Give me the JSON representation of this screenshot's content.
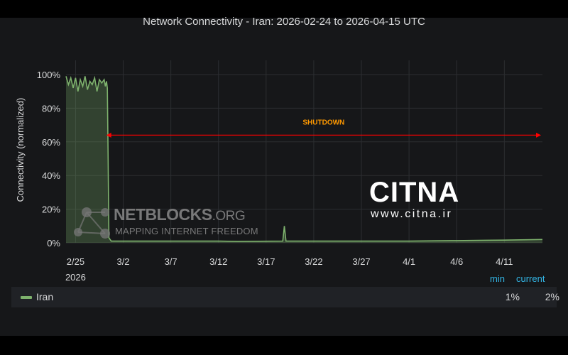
{
  "chart_data": {
    "type": "area",
    "title": "Network Connectivity - Iran: 2026-02-24 to 2026-04-15 UTC",
    "ylabel": "Connectivity (normalized)",
    "xlabel": "",
    "ylim": [
      0,
      100
    ],
    "xlim": [
      "2026-02-24",
      "2026-04-15"
    ],
    "y_ticks": [
      "0%",
      "20%",
      "40%",
      "60%",
      "80%",
      "100%"
    ],
    "x_ticks": [
      {
        "date": "2026-02-25",
        "label": "2/25",
        "sublabel": "2026"
      },
      {
        "date": "2026-03-02",
        "label": "3/2"
      },
      {
        "date": "2026-03-07",
        "label": "3/7"
      },
      {
        "date": "2026-03-12",
        "label": "3/12"
      },
      {
        "date": "2026-03-17",
        "label": "3/17"
      },
      {
        "date": "2026-03-22",
        "label": "3/22"
      },
      {
        "date": "2026-03-27",
        "label": "3/27"
      },
      {
        "date": "2026-04-01",
        "label": "4/1"
      },
      {
        "date": "2026-04-06",
        "label": "4/6"
      },
      {
        "date": "2026-04-11",
        "label": "4/11"
      }
    ],
    "grid": true,
    "series": [
      {
        "name": "Iran",
        "color": "#7eb26d",
        "points": [
          [
            "2026-02-24T00:00",
            99
          ],
          [
            "2026-02-24T06:00",
            94
          ],
          [
            "2026-02-24T12:00",
            98
          ],
          [
            "2026-02-24T18:00",
            92
          ],
          [
            "2026-02-25T00:00",
            98
          ],
          [
            "2026-02-25T06:00",
            90
          ],
          [
            "2026-02-25T12:00",
            97
          ],
          [
            "2026-02-25T18:00",
            93
          ],
          [
            "2026-02-26T00:00",
            99
          ],
          [
            "2026-02-26T06:00",
            91
          ],
          [
            "2026-02-26T12:00",
            96
          ],
          [
            "2026-02-26T18:00",
            94
          ],
          [
            "2026-02-27T00:00",
            98
          ],
          [
            "2026-02-27T06:00",
            90
          ],
          [
            "2026-02-27T12:00",
            97
          ],
          [
            "2026-02-27T18:00",
            95
          ],
          [
            "2026-02-28T00:00",
            97
          ],
          [
            "2026-02-28T03:00",
            93
          ],
          [
            "2026-02-28T06:00",
            96
          ],
          [
            "2026-02-28T08:00",
            92
          ],
          [
            "2026-02-28T10:00",
            50
          ],
          [
            "2026-02-28T12:00",
            3
          ],
          [
            "2026-02-28T18:00",
            1
          ],
          [
            "2026-03-02",
            1
          ],
          [
            "2026-03-07",
            1
          ],
          [
            "2026-03-12",
            1
          ],
          [
            "2026-03-14",
            0.8
          ],
          [
            "2026-03-18T18:00",
            1
          ],
          [
            "2026-03-18T22:00",
            10
          ],
          [
            "2026-03-19T02:00",
            1
          ],
          [
            "2026-03-22",
            1
          ],
          [
            "2026-03-27",
            1
          ],
          [
            "2026-04-01",
            1
          ],
          [
            "2026-04-06",
            1.3
          ],
          [
            "2026-04-09",
            1.5
          ],
          [
            "2026-04-11",
            1.6
          ],
          [
            "2026-04-15",
            2
          ]
        ],
        "min": "1%",
        "current": "2%"
      }
    ],
    "annotations": [
      {
        "text": "SHUTDOWN",
        "from": "2026-02-28",
        "to": "2026-04-15",
        "y": 64,
        "color": "#ff0000",
        "text_color": "#ff9900"
      }
    ],
    "legend": {
      "placement": "bottom",
      "min_header": "min",
      "current_header": "current"
    }
  },
  "watermarks": {
    "netblocks_name": "NETBLOCKS",
    "netblocks_suffix": ".ORG",
    "netblocks_tagline": "MAPPING INTERNET FREEDOM",
    "citna_logo": "CITNA",
    "citna_url": "www.citna.ir"
  },
  "colors": {
    "background": "#161719",
    "grid": "#333333",
    "text": "#d8d9da",
    "accent": "#33b5e5"
  }
}
